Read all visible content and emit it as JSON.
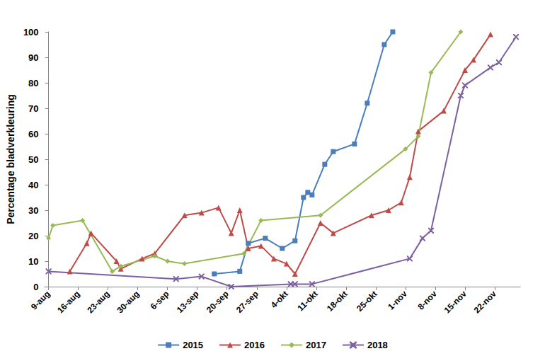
{
  "chart_data": {
    "type": "line",
    "y_label": "Percentage bladverkleuring",
    "xlim": [
      -1,
      111
    ],
    "xticks": [
      {
        "value": 0,
        "label": "9-aug"
      },
      {
        "value": 7,
        "label": "16-aug"
      },
      {
        "value": 14,
        "label": "23-aug"
      },
      {
        "value": 21,
        "label": "30-aug"
      },
      {
        "value": 28,
        "label": "6-sep"
      },
      {
        "value": 35,
        "label": "13-sep"
      },
      {
        "value": 42,
        "label": "20-sep"
      },
      {
        "value": 49,
        "label": "27-sep"
      },
      {
        "value": 56,
        "label": "4-okt"
      },
      {
        "value": 63,
        "label": "11-okt"
      },
      {
        "value": 70,
        "label": "18-okt"
      },
      {
        "value": 77,
        "label": "25-okt"
      },
      {
        "value": 84,
        "label": "1-nov"
      },
      {
        "value": 91,
        "label": "8-nov"
      },
      {
        "value": 98,
        "label": "15-nov"
      },
      {
        "value": 105,
        "label": "22-nov"
      }
    ],
    "ylim": [
      0,
      100
    ],
    "yticks": [
      0,
      10,
      20,
      30,
      40,
      50,
      60,
      70,
      80,
      90,
      100
    ],
    "grid": false,
    "legend": "bottom",
    "series": [
      {
        "name": "2015",
        "color": "#4a7ebb",
        "marker": "square",
        "x": [
          39,
          45,
          47,
          51,
          55,
          58,
          60,
          61,
          62,
          65,
          67,
          72,
          75,
          79,
          81
        ],
        "values": [
          5,
          6,
          17,
          19,
          15,
          18,
          35,
          37,
          36,
          48,
          53,
          56,
          72,
          95,
          100
        ]
      },
      {
        "name": "2016",
        "color": "#be4b48",
        "marker": "triangle",
        "x": [
          5,
          9,
          10,
          16,
          17,
          22,
          25,
          32,
          36,
          40,
          43,
          45,
          47,
          50,
          53,
          56,
          58,
          64,
          67,
          76,
          80,
          83,
          85,
          87,
          93,
          98,
          100,
          104
        ],
        "values": [
          6,
          17,
          21,
          10,
          7,
          11,
          13,
          28,
          29,
          31,
          21,
          30,
          15,
          16,
          11,
          9,
          5,
          25,
          21,
          28,
          30,
          33,
          43,
          61,
          69,
          85,
          89,
          99
        ]
      },
      {
        "name": "2017",
        "color": "#98b954",
        "marker": "diamond",
        "x": [
          0,
          1,
          8,
          15,
          17,
          25,
          28,
          32,
          46,
          50,
          64,
          84,
          87,
          90,
          97
        ],
        "values": [
          19,
          24,
          26,
          6,
          8,
          12,
          10,
          9,
          13,
          26,
          28,
          54,
          59,
          84,
          100
        ]
      },
      {
        "name": "2018",
        "color": "#7d60a0",
        "marker": "x",
        "x": [
          0,
          30,
          36,
          43,
          57,
          58,
          62,
          85,
          88,
          90,
          97,
          98,
          104,
          106,
          110
        ],
        "values": [
          6,
          3,
          4,
          0,
          1,
          1,
          1,
          11,
          19,
          22,
          75,
          79,
          86,
          88,
          98
        ]
      }
    ]
  }
}
